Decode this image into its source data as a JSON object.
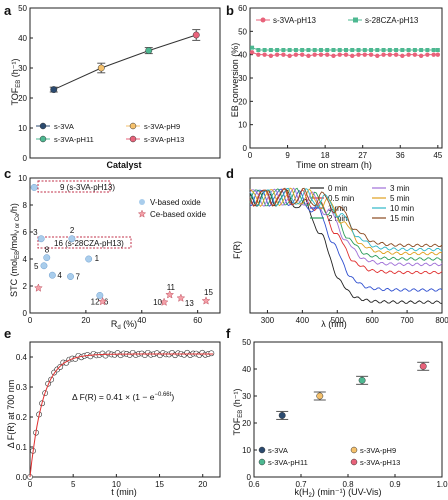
{
  "chart_data": [
    {
      "panel": "a",
      "type": "scatter",
      "xlabel": "Catalyst",
      "ylabel": "TOF_EB (h⁻¹)",
      "ylim": [
        0,
        50
      ],
      "yticks": [
        0,
        10,
        20,
        30,
        40,
        50
      ],
      "points": [
        {
          "label": "s-3VA",
          "y": 22.8,
          "err": 0.8,
          "color": "#2b4a6f"
        },
        {
          "label": "s-3VA-pH9",
          "y": 30.0,
          "err": 1.6,
          "color": "#f5c16c"
        },
        {
          "label": "s-3VA-pH11",
          "y": 35.8,
          "err": 1.0,
          "color": "#4db891"
        },
        {
          "label": "s-3VA-pH13",
          "y": 41.0,
          "err": 1.8,
          "color": "#e8627a"
        }
      ],
      "legend": [
        "s-3VA",
        "s-3VA-pH9",
        "s-3VA-pH11",
        "s-3VA-pH13"
      ]
    },
    {
      "panel": "b",
      "type": "line",
      "xlabel": "Time on stream (h)",
      "ylabel": "EB conversion (%)",
      "xlim": [
        0,
        46
      ],
      "ylim": [
        0,
        60
      ],
      "xticks": [
        0,
        9,
        18,
        27,
        36,
        45
      ],
      "yticks": [
        0,
        10,
        20,
        30,
        40,
        50,
        60
      ],
      "series": [
        {
          "name": "s-3VA-pH13",
          "color": "#e8627a",
          "marker": "circle",
          "x": [
            0.5,
            2,
            3.5,
            5,
            6.5,
            8,
            9.5,
            11,
            12.5,
            14,
            15.5,
            17,
            18.5,
            20,
            21.5,
            23,
            24.5,
            26,
            27.5,
            29,
            30.5,
            32,
            33.5,
            35,
            36.5,
            38,
            39.5,
            41,
            42.5,
            44,
            45
          ],
          "y": [
            41,
            40,
            40,
            39.5,
            40,
            40,
            39.5,
            40,
            40,
            39.5,
            40,
            40,
            40,
            39.5,
            40,
            40,
            39.5,
            40,
            40,
            40,
            39.5,
            40,
            40,
            40,
            39.5,
            40,
            40,
            39.5,
            40,
            40,
            40
          ]
        },
        {
          "name": "s-28CZA-pH13",
          "color": "#4db891",
          "marker": "square",
          "x": [
            0.5,
            2,
            3.5,
            5,
            6.5,
            8,
            9.5,
            11,
            12.5,
            14,
            15.5,
            17,
            18.5,
            20,
            21.5,
            23,
            24.5,
            26,
            27.5,
            29,
            30.5,
            32,
            33.5,
            35,
            36.5,
            38,
            39.5,
            41,
            42.5,
            44,
            45
          ],
          "y": [
            43,
            42,
            42,
            42,
            42,
            42,
            42,
            42,
            42,
            42,
            42,
            42,
            42,
            42,
            42,
            42,
            42,
            42,
            42,
            42,
            42,
            42,
            42,
            42,
            42,
            42,
            42,
            42,
            42,
            42,
            42
          ]
        }
      ]
    },
    {
      "panel": "c",
      "type": "scatter",
      "xlabel": "R_d (%)",
      "ylabel": "STC (mol_EB/mol_V or Ce/h)",
      "xlim": [
        0,
        68
      ],
      "ylim": [
        0,
        10
      ],
      "xticks": [
        0,
        20,
        40,
        60
      ],
      "yticks": [
        0,
        2,
        4,
        6,
        8,
        10
      ],
      "series": [
        {
          "name": "V-based oxide",
          "color": "#a9cdec",
          "marker": "circle",
          "points": [
            {
              "label": "9",
              "x": 1.5,
              "y": 9.3
            },
            {
              "label": "3",
              "x": 4,
              "y": 5.5
            },
            {
              "label": "2",
              "x": 15,
              "y": 5.5
            },
            {
              "label": "8",
              "x": 6,
              "y": 4.1
            },
            {
              "label": "1",
              "x": 21,
              "y": 4.0
            },
            {
              "label": "5",
              "x": 5,
              "y": 3.5
            },
            {
              "label": "4",
              "x": 8,
              "y": 2.8
            },
            {
              "label": "7",
              "x": 14.5,
              "y": 2.7
            },
            {
              "label": "6",
              "x": 25,
              "y": 1.3
            }
          ]
        },
        {
          "name": "Ce-based oxide",
          "color": "#f4a0a8",
          "marker": "star",
          "points": [
            {
              "label": "16",
              "x": 3,
              "y": 1.85
            },
            {
              "label": "12",
              "x": 26,
              "y": 0.85
            },
            {
              "label": "10",
              "x": 48,
              "y": 0.8
            },
            {
              "label": "11",
              "x": 50,
              "y": 1.35
            },
            {
              "label": "13",
              "x": 54,
              "y": 1.1
            },
            {
              "label": "15",
              "x": 63,
              "y": 0.9
            }
          ]
        }
      ],
      "annotations": [
        "9 (s-3VA-pH13)",
        "16 (s-28CZA-pH13)"
      ]
    },
    {
      "panel": "d",
      "type": "line",
      "xlabel": "λ (nm)",
      "ylabel": "F(R)",
      "xlim": [
        250,
        800
      ],
      "xticks": [
        300,
        400,
        500,
        600,
        700,
        800
      ],
      "series": [
        {
          "name": "0 min",
          "color": "#222222"
        },
        {
          "name": "0.5 min",
          "color": "#e03030"
        },
        {
          "name": "1 min",
          "color": "#3050d0"
        },
        {
          "name": "2 min",
          "color": "#2a9d5a"
        },
        {
          "name": "3 min",
          "color": "#a070d8"
        },
        {
          "name": "5 min",
          "color": "#e0a020"
        },
        {
          "name": "10 min",
          "color": "#30b8c8"
        },
        {
          "name": "15 min",
          "color": "#8a4a20"
        }
      ]
    },
    {
      "panel": "e",
      "type": "scatter",
      "xlabel": "t (min)",
      "ylabel": "Δ F(R) at 700 nm",
      "xlim": [
        0,
        22
      ],
      "ylim": [
        0,
        0.45
      ],
      "xticks": [
        0,
        5,
        10,
        15,
        20
      ],
      "yticks": [
        0.0,
        0.1,
        0.2,
        0.3,
        0.4
      ],
      "equation": "Δ F(R) = 0.41 × (1 − e^{−0.66t})",
      "fit": {
        "a": 0.41,
        "k": 0.66
      }
    },
    {
      "panel": "f",
      "type": "scatter",
      "xlabel": "k(H₂) (min⁻¹) (UV-Vis)",
      "ylabel": "TOF_EB (h⁻¹)",
      "xlim": [
        0.6,
        1.0
      ],
      "ylim": [
        0,
        50
      ],
      "xticks": [
        0.6,
        0.7,
        0.8,
        0.9,
        1.0
      ],
      "yticks": [
        0,
        10,
        20,
        30,
        40,
        50
      ],
      "points": [
        {
          "label": "s-3VA",
          "x": 0.66,
          "y": 22.8,
          "color": "#2b4a6f"
        },
        {
          "label": "s-3VA-pH9",
          "x": 0.74,
          "y": 30.0,
          "color": "#f5c16c"
        },
        {
          "label": "s-3VA-pH11",
          "x": 0.83,
          "y": 35.8,
          "color": "#4db891"
        },
        {
          "label": "s-3VA-pH13",
          "x": 0.96,
          "y": 41.0,
          "color": "#e8627a"
        }
      ]
    }
  ],
  "labels": {
    "a": "a",
    "b": "b",
    "c": "c",
    "d": "d",
    "e": "e",
    "f": "f",
    "a_xlabel": "Catalyst",
    "a_ylabel": "TOF",
    "a_ylabel_sub": "EB",
    "a_ylabel_unit": " (h⁻¹)",
    "b_xlabel": "Time on stream (h)",
    "b_ylabel": "EB conversion (%)",
    "c_xlabel": "R",
    "c_xlabel_sub": "d",
    "c_xlabel_unit": " (%)",
    "c_ylabel": "STC (mol",
    "c_ylabel_sub1": "EB",
    "c_ylabel_mid": "/mol",
    "c_ylabel_sub2": "V or Ce",
    "c_ylabel_end": "/h)",
    "c_ann1": "9 (s-3VA-pH13)",
    "c_ann2": "16 (s-28CZA-pH13)",
    "d_xlabel": "λ (nm)",
    "d_ylabel": "F(R)",
    "e_xlabel": "t (min)",
    "e_ylabel": "Δ F(R) at 700 nm",
    "e_eq_main": "Δ F(R) = 0.41 × (1 − e",
    "e_eq_sup": "−0.66t",
    "e_eq_end": ")",
    "f_xlabel": "k(H",
    "f_xlabel_sub": "2",
    "f_xlabel_end": ") (min⁻¹) (UV-Vis)",
    "f_ylabel": "TOF",
    "f_ylabel_sub": "EB",
    "f_ylabel_unit": " (h⁻¹)"
  }
}
